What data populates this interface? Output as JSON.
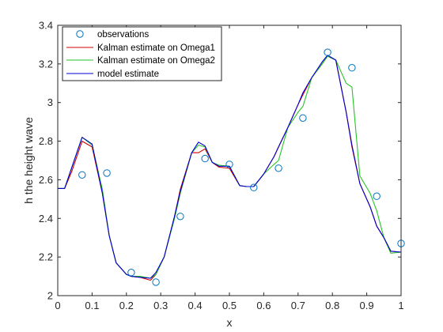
{
  "chart_data": {
    "type": "line",
    "title": "",
    "xlabel": "x",
    "ylabel": "h the height wave",
    "xlim": [
      0,
      1
    ],
    "ylim": [
      2,
      3.4
    ],
    "xticks": [
      "0",
      "0.1",
      "0.2",
      "0.3",
      "0.4",
      "0.5",
      "0.6",
      "0.7",
      "0.8",
      "0.9",
      "1"
    ],
    "yticks": [
      "2",
      "2.2",
      "2.4",
      "2.6",
      "2.8",
      "3",
      "3.2",
      "3.4"
    ],
    "grid": false,
    "legend_position": "top-left",
    "series": [
      {
        "name": "observations",
        "marker": "circle",
        "color": "#0072bd",
        "x": [
          0.071,
          0.143,
          0.214,
          0.286,
          0.357,
          0.429,
          0.5,
          0.571,
          0.643,
          0.714,
          0.786,
          0.857,
          0.929,
          1.0
        ],
        "y": [
          2.625,
          2.635,
          2.12,
          2.07,
          2.41,
          2.71,
          2.68,
          2.56,
          2.66,
          2.92,
          3.26,
          3.18,
          2.515,
          2.27
        ]
      },
      {
        "name": "Kalman estimate on Omega1",
        "color": "#d40000",
        "x": [
          0,
          0.02,
          0.04,
          0.071,
          0.1,
          0.13,
          0.15,
          0.17,
          0.2,
          0.214,
          0.24,
          0.27,
          0.286,
          0.31,
          0.34,
          0.357,
          0.39,
          0.41,
          0.429,
          0.45,
          0.47,
          0.5,
          0.53,
          0.55,
          0.571,
          0.6,
          0.63,
          0.643,
          0.67,
          0.7,
          0.714,
          0.74,
          0.77,
          0.786,
          0.81,
          0.84,
          0.857,
          0.88,
          0.91,
          0.929,
          0.95,
          0.97,
          1.0
        ],
        "y": [
          2.555,
          2.555,
          2.64,
          2.8,
          2.77,
          2.53,
          2.31,
          2.17,
          2.11,
          2.1,
          2.095,
          2.08,
          2.11,
          2.2,
          2.41,
          2.55,
          2.74,
          2.74,
          2.76,
          2.69,
          2.665,
          2.66,
          2.57,
          2.565,
          2.565,
          2.63,
          2.72,
          2.77,
          2.87,
          2.99,
          3.04,
          3.13,
          3.2,
          3.24,
          3.22,
          2.95,
          2.77,
          2.58,
          2.46,
          2.36,
          2.3,
          2.23,
          2.225
        ]
      },
      {
        "name": "Kalman estimate on Omega2",
        "color": "#27c427",
        "x": [
          0,
          0.02,
          0.04,
          0.071,
          0.1,
          0.13,
          0.15,
          0.17,
          0.2,
          0.214,
          0.24,
          0.27,
          0.286,
          0.31,
          0.34,
          0.357,
          0.39,
          0.41,
          0.429,
          0.45,
          0.47,
          0.5,
          0.53,
          0.55,
          0.571,
          0.6,
          0.63,
          0.643,
          0.67,
          0.7,
          0.714,
          0.74,
          0.77,
          0.786,
          0.81,
          0.84,
          0.857,
          0.88,
          0.91,
          0.929,
          0.95,
          0.97,
          1.0
        ],
        "y": [
          2.555,
          2.555,
          2.66,
          2.82,
          2.78,
          2.55,
          2.31,
          2.17,
          2.11,
          2.1,
          2.1,
          2.09,
          2.11,
          2.2,
          2.4,
          2.53,
          2.74,
          2.78,
          2.77,
          2.69,
          2.675,
          2.67,
          2.57,
          2.565,
          2.565,
          2.63,
          2.68,
          2.7,
          2.87,
          2.95,
          2.98,
          3.13,
          3.2,
          3.24,
          3.22,
          3.1,
          3.08,
          2.62,
          2.53,
          2.44,
          2.3,
          2.22,
          2.225
        ]
      },
      {
        "name": "model estimate",
        "color": "#0000d0",
        "x": [
          0,
          0.02,
          0.04,
          0.071,
          0.1,
          0.13,
          0.15,
          0.17,
          0.2,
          0.214,
          0.24,
          0.27,
          0.286,
          0.31,
          0.34,
          0.357,
          0.39,
          0.41,
          0.429,
          0.45,
          0.47,
          0.5,
          0.53,
          0.55,
          0.571,
          0.6,
          0.63,
          0.643,
          0.67,
          0.7,
          0.714,
          0.74,
          0.77,
          0.786,
          0.81,
          0.84,
          0.857,
          0.88,
          0.91,
          0.929,
          0.95,
          0.97,
          1.0
        ],
        "y": [
          2.555,
          2.555,
          2.66,
          2.82,
          2.785,
          2.53,
          2.31,
          2.17,
          2.11,
          2.1,
          2.095,
          2.09,
          2.12,
          2.2,
          2.41,
          2.54,
          2.74,
          2.795,
          2.775,
          2.69,
          2.67,
          2.67,
          2.57,
          2.565,
          2.565,
          2.63,
          2.72,
          2.77,
          2.87,
          2.99,
          3.05,
          3.13,
          3.21,
          3.245,
          3.22,
          2.95,
          2.78,
          2.58,
          2.46,
          2.36,
          2.3,
          2.23,
          2.225
        ]
      }
    ]
  }
}
